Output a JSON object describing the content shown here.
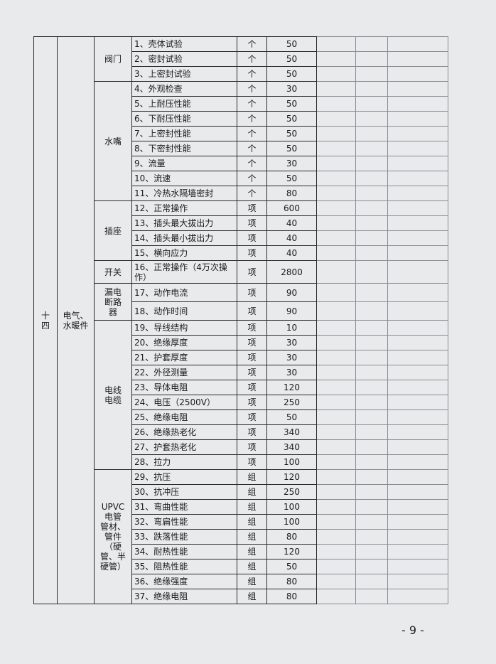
{
  "section": {
    "number_lines": [
      "十",
      "四"
    ],
    "category_lines": [
      "电气、",
      "水暖件"
    ],
    "groups": [
      {
        "name_lines": [
          "阀门"
        ],
        "items": [
          [
            "1、壳体试验",
            "个",
            50
          ],
          [
            "2、密封试验",
            "个",
            50
          ],
          [
            "3、上密封试验",
            "个",
            50
          ]
        ]
      },
      {
        "name_lines": [
          "水嘴"
        ],
        "items": [
          [
            "4、外观检查",
            "个",
            30
          ],
          [
            "5、上耐压性能",
            "个",
            50
          ],
          [
            "6、下耐压性能",
            "个",
            50
          ],
          [
            "7、上密封性能",
            "个",
            50
          ],
          [
            "8、下密封性能",
            "个",
            50
          ],
          [
            "9、流量",
            "个",
            30
          ],
          [
            "10、流速",
            "个",
            50
          ],
          [
            "11、冷热水隔墙密封",
            "个",
            80
          ]
        ]
      },
      {
        "name_lines": [
          "插座"
        ],
        "items": [
          [
            "12、正常操作",
            "项",
            600
          ],
          [
            "13、插头最大拔出力",
            "项",
            40
          ],
          [
            "14、插头最小拔出力",
            "项",
            40
          ],
          [
            "15、横向应力",
            "项",
            40
          ]
        ]
      },
      {
        "name_lines": [
          "开关"
        ],
        "items": [
          [
            "16、正常操作（4万次操作）",
            "项",
            2800
          ]
        ]
      },
      {
        "name_lines": [
          "漏电",
          "断路",
          "器"
        ],
        "items": [
          [
            "17、动作电流",
            "项",
            90
          ],
          [
            "18、动作时间",
            "项",
            90
          ]
        ]
      },
      {
        "name_lines": [
          "电线",
          "电缆"
        ],
        "items": [
          [
            "19、导线结构",
            "项",
            10
          ],
          [
            "20、绝缘厚度",
            "项",
            30
          ],
          [
            "21、护套厚度",
            "项",
            30
          ],
          [
            "22、外径测量",
            "项",
            30
          ],
          [
            "23、导体电阻",
            "项",
            120
          ],
          [
            "24、电压（2500V）",
            "项",
            250
          ],
          [
            "25、绝缘电阻",
            "项",
            50
          ],
          [
            "26、绝缘热老化",
            "项",
            340
          ],
          [
            "27、护套热老化",
            "项",
            340
          ],
          [
            "28、拉力",
            "项",
            100
          ]
        ]
      },
      {
        "name_lines": [
          "UPVC",
          "电管",
          "管材、",
          "管件",
          "（硬",
          "管、半",
          "硬管）"
        ],
        "items": [
          [
            "29、抗压",
            "组",
            120
          ],
          [
            "30、抗冲压",
            "组",
            250
          ],
          [
            "31、弯曲性能",
            "组",
            100
          ],
          [
            "32、弯扁性能",
            "组",
            100
          ],
          [
            "33、跌落性能",
            "组",
            80
          ],
          [
            "34、耐热性能",
            "组",
            120
          ],
          [
            "35、阻热性能",
            "组",
            50
          ],
          [
            "36、绝缘强度",
            "组",
            80
          ],
          [
            "37、绝缘电阻",
            "组",
            80
          ]
        ]
      }
    ]
  },
  "page_number": "- 9 -"
}
